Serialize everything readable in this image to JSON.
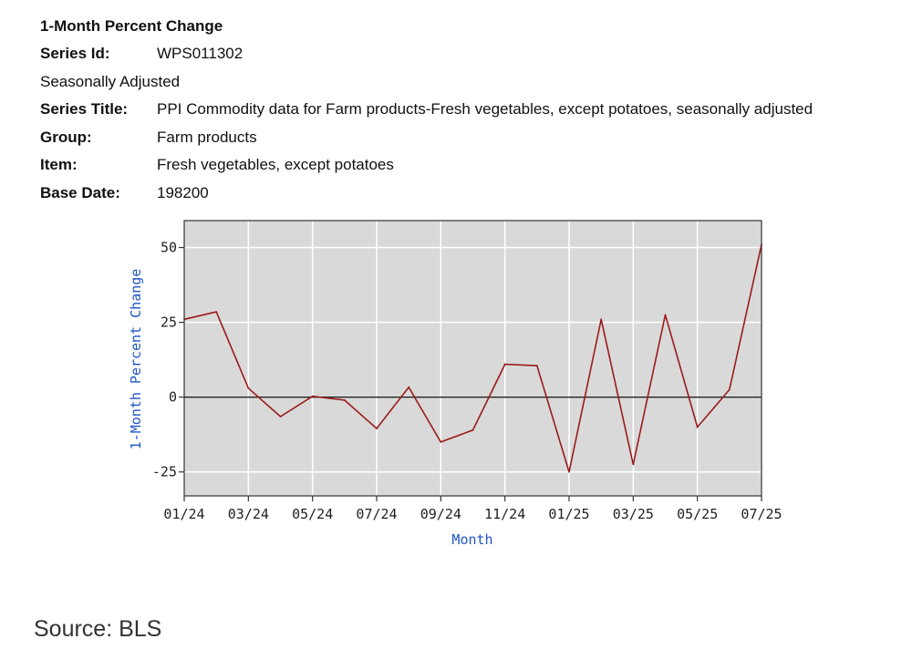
{
  "header": {
    "title": "1-Month Percent Change",
    "series_id_label": "Series Id:",
    "series_id": "WPS011302",
    "adjustment": "Seasonally Adjusted",
    "series_title_label": "Series Title:",
    "series_title": "PPI Commodity data for Farm products-Fresh vegetables, except potatoes, seasonally adjusted",
    "group_label": "Group:",
    "group": "Farm products",
    "item_label": "Item:",
    "item": "Fresh vegetables, except potatoes",
    "base_date_label": "Base Date:",
    "base_date": "198200"
  },
  "chart_data": {
    "type": "line",
    "xlabel": "Month",
    "ylabel": "1-Month Percent Change",
    "x": [
      "01/24",
      "02/24",
      "03/24",
      "04/24",
      "05/24",
      "06/24",
      "07/24",
      "08/24",
      "09/24",
      "10/24",
      "11/24",
      "12/24",
      "01/25",
      "02/25",
      "03/25",
      "04/25",
      "05/25",
      "06/25",
      "07/25"
    ],
    "series": [
      {
        "values": [
          26,
          28.5,
          3,
          -6.5,
          0.3,
          -1,
          -10.5,
          3.3,
          -15,
          -11,
          11,
          10.5,
          -25,
          26,
          -22.5,
          27.5,
          -10,
          2.5,
          51
        ]
      }
    ],
    "xticks": [
      "01/24",
      "03/24",
      "05/24",
      "07/24",
      "09/24",
      "11/24",
      "01/25",
      "03/25",
      "05/25",
      "07/25"
    ],
    "yticks": [
      50,
      25,
      0,
      -25
    ],
    "ylim": [
      -33,
      59
    ],
    "grid": true,
    "zero_line": true,
    "line_color": "#9b1b1b",
    "plot_background": "#d9d9d9",
    "label_color": "#1f55c8"
  },
  "footer": {
    "source": "Source: BLS"
  }
}
